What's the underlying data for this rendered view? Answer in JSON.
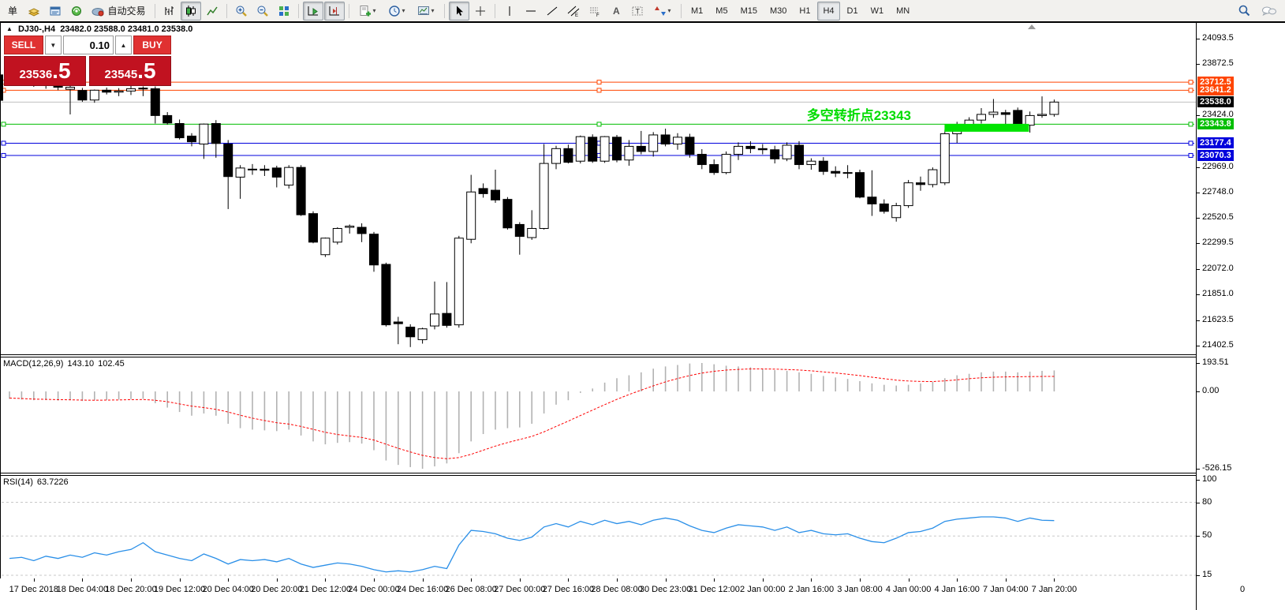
{
  "toolbar": {
    "new_order_label": "单",
    "autotrade_label": "自动交易",
    "timeframes": [
      "M1",
      "M5",
      "M15",
      "M30",
      "H1",
      "H4",
      "D1",
      "W1",
      "MN"
    ],
    "active_timeframe": "H4"
  },
  "chart_header": {
    "symbol": "DJ30-,H4",
    "ohlc": "23482.0 23588.0 23481.0 23538.0"
  },
  "trade_panel": {
    "sell_label": "SELL",
    "buy_label": "BUY",
    "volume": "0.10",
    "sell_price_int": "23536",
    "sell_price_frac": ".5",
    "buy_price_int": "23545",
    "buy_price_frac": ".5"
  },
  "annotation": {
    "text": "多空转折点23343",
    "color": "#00DC00"
  },
  "price_scale_ticks": [
    "24093.5",
    "23872.5",
    "23424.0",
    "22969.0",
    "22748.0",
    "22520.5",
    "22299.5",
    "22072.0",
    "21851.0",
    "21623.5",
    "21402.5"
  ],
  "price_lines": [
    {
      "label": "23712.5",
      "price": 23712.5,
      "color": "#FF4500"
    },
    {
      "label": "23641.2",
      "price": 23641.2,
      "color": "#FF4500"
    },
    {
      "label": "23343.8",
      "price": 23343.8,
      "color": "#00BE00"
    },
    {
      "label": "23177.4",
      "price": 23177.4,
      "color": "#0000DC"
    },
    {
      "label": "23070.3",
      "price": 23070.3,
      "color": "#0000DC"
    }
  ],
  "current_price": {
    "label": "23538.0",
    "price": 23538.0,
    "line_color": "#C0C0C0",
    "badge_color": "#000000"
  },
  "macd": {
    "title": "MACD(12,26,9)",
    "main_value": "143.10",
    "signal_value": "102.45",
    "axis_ticks": [
      "193.51",
      "0.00",
      "-526.15"
    ]
  },
  "rsi": {
    "title": "RSI(14)",
    "value": "63.7226",
    "axis_ticks": [
      "100",
      "80",
      "50",
      "15"
    ],
    "levels": [
      80,
      50,
      15
    ]
  },
  "time_axis": {
    "labels": [
      "17 Dec 2018",
      "18 Dec 04:00",
      "18 Dec 20:00",
      "19 Dec 12:00",
      "20 Dec 04:00",
      "20 Dec 20:00",
      "21 Dec 12:00",
      "24 Dec 00:00",
      "24 Dec 16:00",
      "26 Dec 08:00",
      "27 Dec 00:00",
      "27 Dec 16:00",
      "28 Dec 08:00",
      "30 Dec 23:00",
      "31 Dec 12:00",
      "2 Jan 00:00",
      "2 Jan 16:00",
      "3 Jan 08:00",
      "4 Jan 00:00",
      "4 Jan 16:00",
      "7 Jan 04:00",
      "7 Jan 20:00"
    ],
    "right_corner": "0"
  },
  "chart_data": {
    "type": "candlestick",
    "symbol": "DJ30",
    "timeframe": "H4",
    "bull_color": "#FFFFFF",
    "bear_color": "#000000",
    "wick_color": "#000000",
    "macd_histogram_color": "#B2B2B2",
    "macd_signal_color": "#FF0000",
    "rsi_line_color": "#2A8FE8",
    "candles": [
      [
        23760,
        23795,
        23705,
        23730
      ],
      [
        23730,
        23770,
        23695,
        23710
      ],
      [
        23710,
        23745,
        23672,
        23690
      ],
      [
        23690,
        23718,
        23655,
        23700
      ],
      [
        23700,
        23722,
        23642,
        23668
      ],
      [
        23650,
        23685,
        23430,
        23668
      ],
      [
        23640,
        23662,
        23540,
        23556
      ],
      [
        23556,
        23648,
        23532,
        23642
      ],
      [
        23642,
        23665,
        23605,
        23625
      ],
      [
        23625,
        23660,
        23590,
        23635
      ],
      [
        23635,
        23680,
        23600,
        23655
      ],
      [
        23655,
        23675,
        23590,
        23660
      ],
      [
        23655,
        23675,
        23350,
        23420
      ],
      [
        23420,
        23450,
        23340,
        23355
      ],
      [
        23350,
        23385,
        23210,
        23225
      ],
      [
        23240,
        23265,
        23150,
        23190
      ],
      [
        23170,
        23350,
        23040,
        23345
      ],
      [
        23350,
        23380,
        23050,
        23175
      ],
      [
        23170,
        23205,
        22600,
        22885
      ],
      [
        22880,
        22985,
        22690,
        22960
      ],
      [
        22950,
        22995,
        22900,
        22945
      ],
      [
        22950,
        22985,
        22890,
        22940
      ],
      [
        22960,
        22980,
        22790,
        22880
      ],
      [
        22810,
        22985,
        22780,
        22965
      ],
      [
        22965,
        22985,
        22540,
        22550
      ],
      [
        22560,
        22580,
        22300,
        22310
      ],
      [
        22200,
        22350,
        22180,
        22345
      ],
      [
        22310,
        22440,
        22290,
        22430
      ],
      [
        22440,
        22465,
        22385,
        22450
      ],
      [
        22440,
        22475,
        22310,
        22385
      ],
      [
        22380,
        22400,
        22050,
        22110
      ],
      [
        22115,
        22130,
        21570,
        21585
      ],
      [
        21610,
        21655,
        21415,
        21595
      ],
      [
        21565,
        21590,
        21390,
        21480
      ],
      [
        21455,
        21560,
        21420,
        21550
      ],
      [
        21575,
        21965,
        21545,
        21680
      ],
      [
        21685,
        21960,
        21560,
        21580
      ],
      [
        21585,
        22365,
        21560,
        22345
      ],
      [
        22335,
        22900,
        22300,
        22750
      ],
      [
        22780,
        22825,
        22700,
        22735
      ],
      [
        22765,
        22945,
        22655,
        22680
      ],
      [
        22685,
        22705,
        22420,
        22435
      ],
      [
        22465,
        22485,
        22200,
        22360
      ],
      [
        22350,
        22590,
        22330,
        22430
      ],
      [
        22430,
        23170,
        22420,
        23000
      ],
      [
        23000,
        23155,
        22950,
        23130
      ],
      [
        23130,
        23165,
        23000,
        23010
      ],
      [
        23020,
        23245,
        23000,
        23235
      ],
      [
        23230,
        23255,
        23005,
        23020
      ],
      [
        23020,
        23240,
        23005,
        23235
      ],
      [
        23230,
        23250,
        23010,
        23030
      ],
      [
        23030,
        23205,
        22980,
        23150
      ],
      [
        23150,
        23285,
        23080,
        23105
      ],
      [
        23105,
        23275,
        23060,
        23250
      ],
      [
        23250,
        23305,
        23150,
        23170
      ],
      [
        23170,
        23265,
        23120,
        23230
      ],
      [
        23230,
        23260,
        23050,
        23080
      ],
      [
        23080,
        23125,
        22950,
        22990
      ],
      [
        22990,
        23035,
        22900,
        22920
      ],
      [
        22920,
        23105,
        22905,
        23080
      ],
      [
        23080,
        23185,
        23030,
        23150
      ],
      [
        23150,
        23195,
        23090,
        23130
      ],
      [
        23130,
        23170,
        23080,
        23120
      ],
      [
        23120,
        23155,
        23000,
        23040
      ],
      [
        23040,
        23185,
        23020,
        23160
      ],
      [
        23160,
        23195,
        22950,
        22990
      ],
      [
        22990,
        23045,
        22945,
        23020
      ],
      [
        23020,
        23055,
        22900,
        22930
      ],
      [
        22930,
        22975,
        22880,
        22915
      ],
      [
        22915,
        22985,
        22870,
        22920
      ],
      [
        22920,
        22945,
        22695,
        22705
      ],
      [
        22705,
        22940,
        22540,
        22645
      ],
      [
        22645,
        22685,
        22560,
        22580
      ],
      [
        22525,
        22655,
        22490,
        22630
      ],
      [
        22630,
        22855,
        22610,
        22830
      ],
      [
        22830,
        22885,
        22760,
        22815
      ],
      [
        22815,
        22965,
        22790,
        22945
      ],
      [
        22830,
        23295,
        22810,
        23260
      ],
      [
        23260,
        23365,
        23180,
        23340
      ],
      [
        23340,
        23405,
        23300,
        23380
      ],
      [
        23380,
        23485,
        23350,
        23430
      ],
      [
        23430,
        23565,
        23400,
        23450
      ],
      [
        23445,
        23470,
        23340,
        23430
      ],
      [
        23465,
        23490,
        23330,
        23335
      ],
      [
        23335,
        23455,
        23270,
        23420
      ],
      [
        23420,
        23588,
        23400,
        23430
      ],
      [
        23430,
        23560,
        23410,
        23538
      ]
    ],
    "macd_histogram": [
      -50,
      -55,
      -60,
      -58,
      -62,
      -60,
      -65,
      -60,
      -58,
      -55,
      -52,
      -50,
      -80,
      -110,
      -140,
      -165,
      -150,
      -165,
      -220,
      -250,
      -260,
      -265,
      -270,
      -260,
      -300,
      -340,
      -360,
      -350,
      -345,
      -355,
      -400,
      -470,
      -500,
      -515,
      -526.15,
      -510,
      -490,
      -420,
      -340,
      -290,
      -260,
      -250,
      -245,
      -220,
      -150,
      -90,
      -60,
      -10,
      20,
      60,
      90,
      110,
      130,
      155,
      170,
      180,
      190,
      193.51,
      185,
      175,
      170,
      165,
      155,
      145,
      140,
      130,
      120,
      105,
      95,
      85,
      70,
      55,
      45,
      40,
      45,
      55,
      65,
      90,
      110,
      120,
      130,
      135,
      135,
      130,
      135,
      140,
      143.1
    ],
    "macd_signal": [
      -45,
      -48,
      -52,
      -54,
      -56,
      -57,
      -59,
      -60,
      -59,
      -58,
      -56,
      -55,
      -60,
      -70,
      -85,
      -100,
      -110,
      -122,
      -140,
      -162,
      -182,
      -198,
      -213,
      -222,
      -238,
      -258,
      -278,
      -293,
      -303,
      -313,
      -331,
      -359,
      -387,
      -412,
      -435,
      -450,
      -458,
      -450,
      -428,
      -400,
      -372,
      -348,
      -327,
      -306,
      -275,
      -238,
      -202,
      -164,
      -127,
      -90,
      -54,
      -21,
      9,
      38,
      65,
      88,
      108,
      125,
      137,
      145,
      150,
      153,
      153,
      152,
      149,
      146,
      140,
      133,
      126,
      117,
      108,
      97,
      87,
      77,
      71,
      68,
      67,
      72,
      79,
      87,
      93,
      97,
      99,
      100,
      101,
      102,
      102.45
    ],
    "rsi_series": [
      30,
      31,
      28,
      32,
      30,
      33,
      31,
      35,
      33,
      36,
      38,
      44,
      36,
      33,
      30,
      28,
      34,
      30,
      25,
      29,
      28,
      29,
      27,
      30,
      25,
      22,
      24,
      26,
      25,
      23,
      20,
      18,
      19,
      18,
      20,
      23,
      21,
      42,
      55,
      54,
      52,
      48,
      46,
      49,
      58,
      61,
      58,
      63,
      60,
      64,
      61,
      63,
      60,
      64,
      66,
      64,
      59,
      55,
      53,
      57,
      60,
      59,
      58,
      55,
      58,
      53,
      55,
      52,
      51,
      52,
      48,
      45,
      44,
      48,
      53,
      54,
      57,
      63,
      65,
      66,
      67,
      67,
      66,
      63,
      66,
      64,
      63.72
    ],
    "highlight_box": {
      "start_index": 77.3,
      "end_index": 83.6,
      "price_top": 23347,
      "price_bottom": 23278,
      "color": "#00E400"
    },
    "clipped_left_candle": {
      "price_top": 23780,
      "price_bottom": 23550
    }
  }
}
